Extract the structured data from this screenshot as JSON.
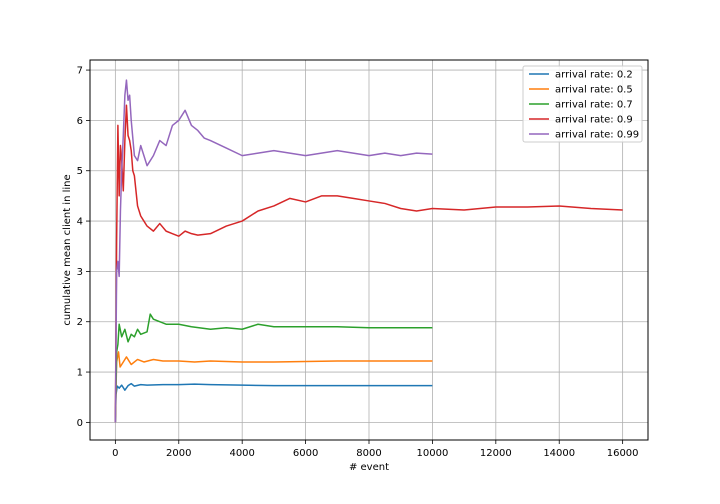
{
  "chart_data": {
    "type": "line",
    "title": "",
    "xlabel": "# event",
    "ylabel": "cumulative mean client in line",
    "xlim": [
      -800,
      16800
    ],
    "ylim": [
      -0.35,
      7.2
    ],
    "xticks": [
      0,
      2000,
      4000,
      6000,
      8000,
      10000,
      12000,
      14000,
      16000
    ],
    "yticks": [
      0,
      1,
      2,
      3,
      4,
      5,
      6,
      7
    ],
    "grid": true,
    "legend": "top-right",
    "series": [
      {
        "name": "arrival rate: 0.2",
        "color": "#1f77b4",
        "x": [
          0,
          20,
          60,
          120,
          200,
          300,
          400,
          500,
          600,
          800,
          1000,
          1500,
          2000,
          2500,
          3000,
          4000,
          5000,
          6000,
          7000,
          8000,
          9000,
          10000
        ],
        "y": [
          0,
          0.55,
          0.72,
          0.68,
          0.74,
          0.64,
          0.73,
          0.77,
          0.72,
          0.75,
          0.74,
          0.75,
          0.75,
          0.76,
          0.75,
          0.74,
          0.73,
          0.73,
          0.73,
          0.73,
          0.73,
          0.73
        ]
      },
      {
        "name": "arrival rate: 0.5",
        "color": "#ff7f0e",
        "x": [
          0,
          40,
          100,
          150,
          250,
          350,
          500,
          700,
          900,
          1200,
          1500,
          2000,
          2500,
          3000,
          4000,
          5000,
          6000,
          7000,
          8000,
          9000,
          10000
        ],
        "y": [
          0.1,
          1.2,
          1.4,
          1.1,
          1.2,
          1.3,
          1.15,
          1.25,
          1.2,
          1.25,
          1.22,
          1.22,
          1.2,
          1.22,
          1.2,
          1.2,
          1.21,
          1.22,
          1.22,
          1.22,
          1.22
        ]
      },
      {
        "name": "arrival rate: 0.7",
        "color": "#2ca02c",
        "x": [
          0,
          40,
          80,
          120,
          200,
          300,
          400,
          500,
          600,
          700,
          800,
          1000,
          1100,
          1200,
          1400,
          1600,
          2000,
          2400,
          3000,
          3500,
          4000,
          4500,
          5000,
          6000,
          7000,
          8000,
          9000,
          10000
        ],
        "y": [
          0,
          1.4,
          1.55,
          1.95,
          1.7,
          1.85,
          1.6,
          1.75,
          1.7,
          1.85,
          1.75,
          1.8,
          2.15,
          2.05,
          2.0,
          1.95,
          1.95,
          1.9,
          1.85,
          1.88,
          1.85,
          1.95,
          1.9,
          1.9,
          1.9,
          1.88,
          1.88,
          1.88
        ]
      },
      {
        "name": "arrival rate: 0.9",
        "color": "#d62728",
        "x": [
          0,
          40,
          80,
          120,
          160,
          200,
          250,
          300,
          350,
          400,
          450,
          500,
          550,
          600,
          700,
          800,
          900,
          1000,
          1200,
          1400,
          1600,
          1800,
          2000,
          2200,
          2400,
          2600,
          3000,
          3500,
          4000,
          4500,
          5000,
          5500,
          6000,
          6500,
          7000,
          7500,
          8000,
          8500,
          9000,
          9500,
          10000,
          11000,
          12000,
          13000,
          14000,
          15000,
          16000
        ],
        "y": [
          0,
          3.6,
          5.9,
          4.5,
          5.5,
          5.2,
          4.6,
          5.6,
          6.3,
          5.7,
          5.6,
          5.4,
          5.0,
          4.9,
          4.3,
          4.1,
          4.0,
          3.9,
          3.8,
          3.95,
          3.8,
          3.75,
          3.7,
          3.8,
          3.75,
          3.72,
          3.75,
          3.9,
          4.0,
          4.2,
          4.3,
          4.45,
          4.38,
          4.5,
          4.5,
          4.45,
          4.4,
          4.35,
          4.25,
          4.2,
          4.25,
          4.22,
          4.28,
          4.28,
          4.3,
          4.25,
          4.22
        ]
      },
      {
        "name": "arrival rate: 0.99",
        "color": "#9467bd",
        "x": [
          0,
          40,
          80,
          120,
          160,
          200,
          250,
          300,
          350,
          400,
          450,
          500,
          600,
          700,
          800,
          900,
          1000,
          1200,
          1400,
          1600,
          1800,
          2000,
          2200,
          2400,
          2600,
          2800,
          3000,
          3500,
          4000,
          4500,
          5000,
          5500,
          6000,
          6500,
          7000,
          7500,
          8000,
          8500,
          9000,
          9500,
          10000
        ],
        "y": [
          0,
          3.0,
          3.2,
          2.9,
          4.2,
          5.0,
          5.7,
          6.5,
          6.8,
          6.4,
          6.5,
          6.0,
          5.3,
          5.2,
          5.5,
          5.3,
          5.1,
          5.3,
          5.6,
          5.5,
          5.9,
          6.0,
          6.2,
          5.9,
          5.8,
          5.65,
          5.6,
          5.45,
          5.3,
          5.35,
          5.4,
          5.35,
          5.3,
          5.35,
          5.4,
          5.35,
          5.3,
          5.35,
          5.3,
          5.35,
          5.33
        ]
      }
    ]
  }
}
